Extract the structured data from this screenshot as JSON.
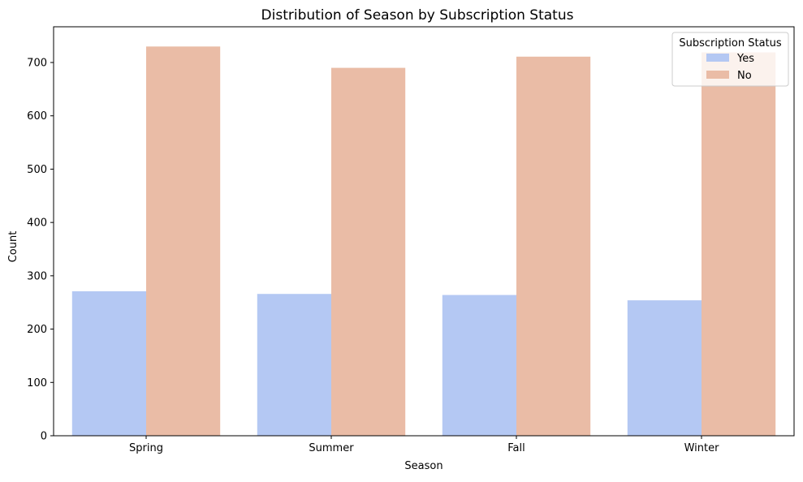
{
  "chart_data": {
    "type": "bar",
    "title": "Distribution of Season by Subscription Status",
    "xlabel": "Season",
    "ylabel": "Count",
    "categories": [
      "Spring",
      "Summer",
      "Fall",
      "Winter"
    ],
    "series": [
      {
        "name": "Yes",
        "values": [
          271,
          266,
          264,
          254
        ],
        "color": "#b4c8f3"
      },
      {
        "name": "No",
        "values": [
          730,
          690,
          711,
          719
        ],
        "color": "#eabca6"
      }
    ],
    "ylim": [
      0,
      767
    ],
    "yticks": [
      0,
      100,
      200,
      300,
      400,
      500,
      600,
      700
    ],
    "grid": false,
    "legend": {
      "title": "Subscription Status",
      "placement": "top-right"
    }
  }
}
